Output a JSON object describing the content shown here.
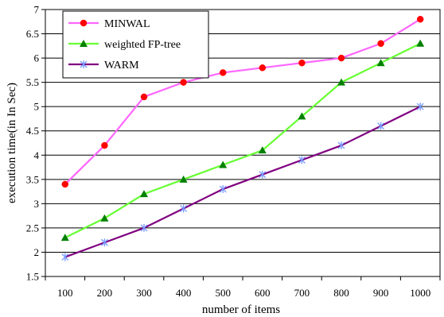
{
  "chart_data": {
    "type": "line",
    "title": "",
    "xlabel": "number of items",
    "ylabel": "execution time(in In Sec)",
    "x": [
      100,
      200,
      300,
      400,
      500,
      600,
      700,
      800,
      900,
      1000
    ],
    "x_tick_labels": [
      "100",
      "200",
      "300",
      "400",
      "500",
      "600",
      "700",
      "800",
      "900",
      "1000"
    ],
    "ylim": [
      1.5,
      7
    ],
    "y_ticks": [
      1.5,
      2,
      2.5,
      3,
      3.5,
      4,
      4.5,
      5,
      5.5,
      6,
      6.5,
      7
    ],
    "y_tick_labels": [
      "1.5",
      "2",
      "2.5",
      "3",
      "3.5",
      "4",
      "4.5",
      "5",
      "5.5",
      "6",
      "6.5",
      "7"
    ],
    "grid": "horizontal",
    "legend_position": "top-left",
    "series": [
      {
        "name": "MINWAL",
        "values": [
          3.4,
          4.2,
          5.2,
          5.5,
          5.7,
          5.8,
          5.9,
          6.0,
          6.3,
          6.8
        ],
        "line_color": "#ff66ff",
        "marker_color": "#ff0000",
        "marker": "circle"
      },
      {
        "name": "weighted FP-tree",
        "values": [
          2.3,
          2.7,
          3.2,
          3.5,
          3.8,
          4.1,
          4.8,
          5.5,
          5.9,
          6.3
        ],
        "line_color": "#66ff33",
        "marker_color": "#008000",
        "marker": "triangle"
      },
      {
        "name": "WARM",
        "values": [
          1.9,
          2.2,
          2.5,
          2.9,
          3.3,
          3.6,
          3.9,
          4.2,
          4.6,
          5.0
        ],
        "line_color": "#800080",
        "marker_color": "#7799ff",
        "marker": "asterisk"
      }
    ]
  }
}
